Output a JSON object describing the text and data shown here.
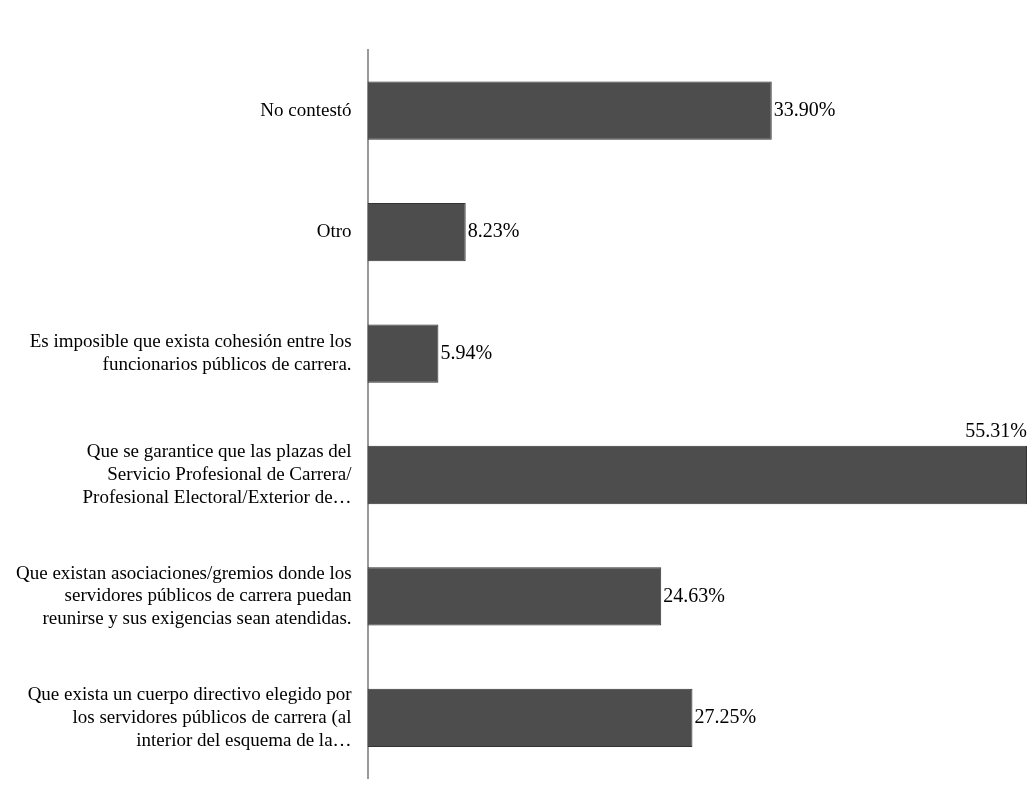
{
  "chart_data": {
    "type": "bar",
    "orientation": "horizontal",
    "categories": [
      "No contestó",
      "Otro",
      "Es imposible que exista cohesión entre los funcionarios públicos de carrera.",
      "Que se garantice que las plazas del Servicio Profesional de Carrera/ Profesional Electoral/Exterior de…",
      "Que existan asociaciones/gremios donde los servidores públicos de carrera puedan reunirse y sus exigencias sean atendidas.",
      "Que exista un cuerpo directivo elegido por los servidores públicos de carrera (al interior del esquema de la…"
    ],
    "values": [
      33.9,
      8.23,
      5.94,
      55.31,
      24.63,
      27.25
    ],
    "value_labels": [
      "33.90%",
      "8.23%",
      "5.94%",
      "55.31%",
      "24.63%",
      "27.25%"
    ],
    "color": "#4d4d4d"
  }
}
